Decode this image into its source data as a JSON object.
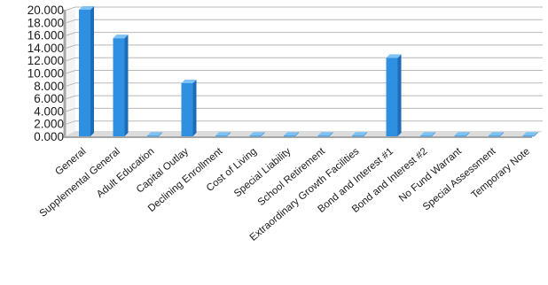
{
  "chart_data": {
    "type": "bar",
    "title": "",
    "xlabel": "",
    "ylabel": "",
    "categories": [
      "General",
      "Supplemental General",
      "Adult Education",
      "Capital Outlay",
      "Declining Enrollment",
      "Cost of Living",
      "Special Liability",
      "School Retirement",
      "Extraordinary Growth Facilities",
      "Bond and Interest #1",
      "Bond and Interest #2",
      "No Fund Warrant",
      "Special Assessment",
      "Temporary Note"
    ],
    "values": [
      20.0,
      15.5,
      0.1,
      8.4,
      0.1,
      0.1,
      0.1,
      0.1,
      0.1,
      12.4,
      0.1,
      0.1,
      0.1,
      0.1
    ],
    "ylim": [
      0,
      20
    ],
    "yticks": [
      "0.000",
      "2.000",
      "4.000",
      "6.000",
      "8.000",
      "10.000",
      "12.000",
      "14.000",
      "16.000",
      "18.000",
      "20.000"
    ],
    "grid": true,
    "legend": "none",
    "bar_color": "#2f8fe0",
    "bar_top_color": "#7cc2f5",
    "bar_side_color": "#1e6cb8",
    "grid_color": "#b8b8b8",
    "wall_color": "#a6a6a6"
  }
}
